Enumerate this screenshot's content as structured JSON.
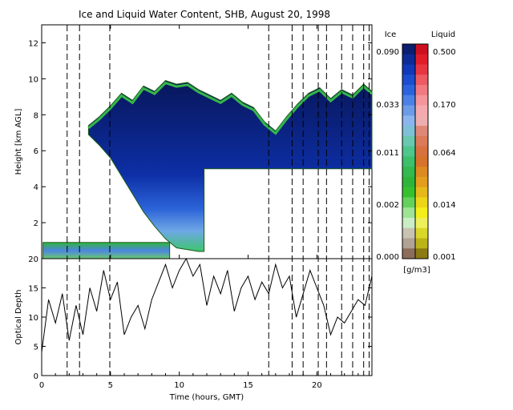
{
  "chart_data": [
    {
      "type": "heatmap",
      "title": "Ice and Liquid Water Content, SHB, August 20, 1998",
      "ylabel": "Height [km AGL]",
      "xlim": [
        0,
        24
      ],
      "ylim": [
        0,
        13
      ],
      "y_ticks": [
        2,
        4,
        6,
        8,
        10,
        12
      ],
      "grid": false,
      "ice_cloud_outline": {
        "x": [
          3.4,
          4.2,
          5.0,
          5.8,
          6.6,
          7.4,
          8.2,
          9.0,
          9.8,
          10.6,
          11.4,
          12.2,
          13.0,
          13.8,
          14.6,
          15.4,
          16.2,
          17.0,
          17.8,
          18.6,
          19.4,
          20.2,
          21.0,
          21.8,
          22.6,
          23.4,
          24.0
        ],
        "top_km": [
          7.4,
          7.9,
          8.5,
          9.2,
          8.8,
          9.6,
          9.3,
          9.9,
          9.7,
          9.8,
          9.4,
          9.1,
          8.8,
          9.2,
          8.7,
          8.4,
          7.6,
          7.1,
          7.9,
          8.6,
          9.2,
          9.5,
          8.9,
          9.4,
          9.1,
          9.7,
          9.3
        ],
        "base_km": [
          6.9,
          6.3,
          5.6,
          4.6,
          3.6,
          2.6,
          1.8,
          1.1,
          0.6,
          0.5,
          0.4,
          5.0,
          5.0,
          5.0,
          5.0,
          5.0,
          5.0,
          5.0,
          5.0,
          5.0,
          5.0,
          5.0,
          5.0,
          5.0,
          5.0,
          5.0,
          5.0
        ]
      },
      "liquid_layer": {
        "x_range": [
          0.1,
          9.3
        ],
        "base_km": 0.0,
        "top_km": 0.9
      },
      "colorbar": {
        "ice_label": "Ice",
        "liquid_label": "Liquid",
        "units": "[g/m3]",
        "ice_ticks": [
          "0.090",
          "0.033",
          "0.011",
          "0.002",
          "0.000"
        ],
        "liquid_ticks": [
          "0.500",
          "0.170",
          "0.064",
          "0.014",
          "0.001"
        ],
        "ice_colors": [
          "#0b1e70",
          "#0d2a96",
          "#1038b8",
          "#1b4dd1",
          "#2b62de",
          "#4b80e6",
          "#6c9be9",
          "#8bb5ef",
          "#7fc0d9",
          "#69c8b0",
          "#4fc68c",
          "#3cc06a",
          "#33b94e",
          "#2fb43a",
          "#35c12e",
          "#63d25a",
          "#9de495",
          "#c9eec4",
          "#c8c3b0",
          "#b0a393",
          "#8c6d59"
        ],
        "liquid_colors": [
          "#cc1020",
          "#e01e2a",
          "#e83640",
          "#ed5a62",
          "#f07a80",
          "#f3959a",
          "#f4a9ae",
          "#efaeae",
          "#e08878",
          "#dd7a5a",
          "#d9713f",
          "#d7722c",
          "#dc8a22",
          "#e29e1c",
          "#e6b91a",
          "#ecd617",
          "#f4ee1a",
          "#eef05a",
          "#d9d82a",
          "#bcb417",
          "#8c7a12"
        ]
      }
    },
    {
      "type": "line",
      "ylabel": "Optical Depth",
      "xlabel": "Time (hours, GMT)",
      "xlim": [
        0,
        24
      ],
      "ylim": [
        0,
        20
      ],
      "x_ticks": [
        0,
        5,
        10,
        15,
        20
      ],
      "y_ticks": [
        0,
        5,
        10,
        15,
        20
      ],
      "grid": false,
      "x": [
        0.0,
        0.5,
        1.0,
        1.5,
        2.0,
        2.5,
        3.0,
        3.5,
        4.0,
        4.5,
        5.0,
        5.5,
        6.0,
        6.5,
        7.0,
        7.5,
        8.0,
        8.5,
        9.0,
        9.5,
        10.0,
        10.5,
        11.0,
        11.5,
        12.0,
        12.5,
        13.0,
        13.5,
        14.0,
        14.5,
        15.0,
        15.5,
        16.0,
        16.5,
        17.0,
        17.5,
        18.0,
        18.5,
        19.0,
        19.5,
        20.0,
        20.5,
        21.0,
        21.5,
        22.0,
        22.5,
        23.0,
        23.5,
        24.0
      ],
      "values": [
        4,
        13,
        9,
        14,
        6,
        12,
        7,
        15,
        11,
        18,
        13,
        16,
        7,
        10,
        12,
        8,
        13,
        16,
        19,
        15,
        18,
        20,
        17,
        19,
        12,
        17,
        14,
        18,
        11,
        15,
        17,
        13,
        16,
        14,
        19,
        15,
        17,
        10,
        14,
        18,
        15,
        12,
        7,
        10,
        9,
        11,
        13,
        12,
        17
      ],
      "dashed_lines_x": [
        1.85,
        2.75,
        4.95,
        16.5,
        18.2,
        19.0,
        20.1,
        20.7,
        21.8,
        22.6,
        23.4,
        23.8
      ]
    }
  ]
}
